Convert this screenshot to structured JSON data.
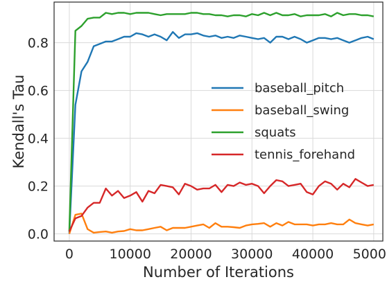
{
  "chart_data": {
    "type": "line",
    "xlabel": "Number of Iterations",
    "ylabel": "Kendall's Tau",
    "xlim": [
      -2500,
      51500
    ],
    "ylim": [
      -0.03,
      0.97
    ],
    "xticks": [
      0,
      10000,
      20000,
      30000,
      40000,
      50000
    ],
    "xtick_labels": [
      "0",
      "10000",
      "20000",
      "30000",
      "40000",
      "50000"
    ],
    "yticks": [
      0.0,
      0.2,
      0.4,
      0.6,
      0.8
    ],
    "ytick_labels": [
      "0.0",
      "0.2",
      "0.4",
      "0.6",
      "0.8"
    ],
    "grid": true,
    "legend_position": "center-right",
    "x": [
      0,
      1000,
      2000,
      3000,
      4000,
      5000,
      6000,
      7000,
      8000,
      9000,
      10000,
      11000,
      12000,
      13000,
      14000,
      15000,
      16000,
      17000,
      18000,
      19000,
      20000,
      21000,
      22000,
      23000,
      24000,
      25000,
      26000,
      27000,
      28000,
      29000,
      30000,
      31000,
      32000,
      33000,
      34000,
      35000,
      36000,
      37000,
      38000,
      39000,
      40000,
      41000,
      42000,
      43000,
      44000,
      45000,
      46000,
      47000,
      48000,
      49000,
      50000
    ],
    "series": [
      {
        "name": "baseball_pitch",
        "color": "#1f77b4",
        "values": [
          0.0,
          0.54,
          0.68,
          0.72,
          0.785,
          0.795,
          0.805,
          0.805,
          0.815,
          0.825,
          0.825,
          0.84,
          0.835,
          0.825,
          0.835,
          0.825,
          0.81,
          0.845,
          0.82,
          0.835,
          0.835,
          0.84,
          0.83,
          0.825,
          0.83,
          0.82,
          0.825,
          0.82,
          0.83,
          0.825,
          0.82,
          0.815,
          0.82,
          0.8,
          0.825,
          0.825,
          0.815,
          0.825,
          0.815,
          0.8,
          0.81,
          0.82,
          0.82,
          0.815,
          0.82,
          0.81,
          0.8,
          0.81,
          0.82,
          0.825,
          0.815
        ]
      },
      {
        "name": "baseball_swing",
        "color": "#ff7f0e",
        "values": [
          0.0,
          0.08,
          0.085,
          0.02,
          0.005,
          0.008,
          0.01,
          0.005,
          0.01,
          0.012,
          0.02,
          0.015,
          0.015,
          0.02,
          0.025,
          0.03,
          0.015,
          0.025,
          0.025,
          0.025,
          0.03,
          0.035,
          0.04,
          0.025,
          0.045,
          0.03,
          0.03,
          0.028,
          0.025,
          0.035,
          0.04,
          0.042,
          0.045,
          0.03,
          0.045,
          0.035,
          0.05,
          0.04,
          0.04,
          0.04,
          0.035,
          0.04,
          0.04,
          0.045,
          0.04,
          0.04,
          0.06,
          0.045,
          0.04,
          0.035,
          0.04
        ]
      },
      {
        "name": "squats",
        "color": "#2ca02c",
        "values": [
          0.01,
          0.85,
          0.87,
          0.9,
          0.905,
          0.905,
          0.925,
          0.92,
          0.925,
          0.925,
          0.92,
          0.925,
          0.925,
          0.925,
          0.92,
          0.915,
          0.92,
          0.92,
          0.92,
          0.92,
          0.925,
          0.925,
          0.92,
          0.92,
          0.915,
          0.915,
          0.91,
          0.915,
          0.915,
          0.91,
          0.92,
          0.915,
          0.925,
          0.915,
          0.925,
          0.915,
          0.915,
          0.92,
          0.91,
          0.915,
          0.915,
          0.915,
          0.92,
          0.91,
          0.925,
          0.915,
          0.92,
          0.92,
          0.915,
          0.915,
          0.91
        ]
      },
      {
        "name": "tennis_forehand",
        "color": "#d62728",
        "values": [
          0.01,
          0.065,
          0.075,
          0.11,
          0.13,
          0.13,
          0.19,
          0.16,
          0.18,
          0.15,
          0.16,
          0.175,
          0.135,
          0.18,
          0.17,
          0.205,
          0.2,
          0.195,
          0.165,
          0.21,
          0.2,
          0.185,
          0.19,
          0.19,
          0.205,
          0.175,
          0.205,
          0.2,
          0.215,
          0.205,
          0.21,
          0.2,
          0.17,
          0.2,
          0.225,
          0.22,
          0.2,
          0.205,
          0.21,
          0.175,
          0.165,
          0.2,
          0.22,
          0.21,
          0.185,
          0.21,
          0.195,
          0.23,
          0.215,
          0.2,
          0.205
        ]
      }
    ]
  }
}
